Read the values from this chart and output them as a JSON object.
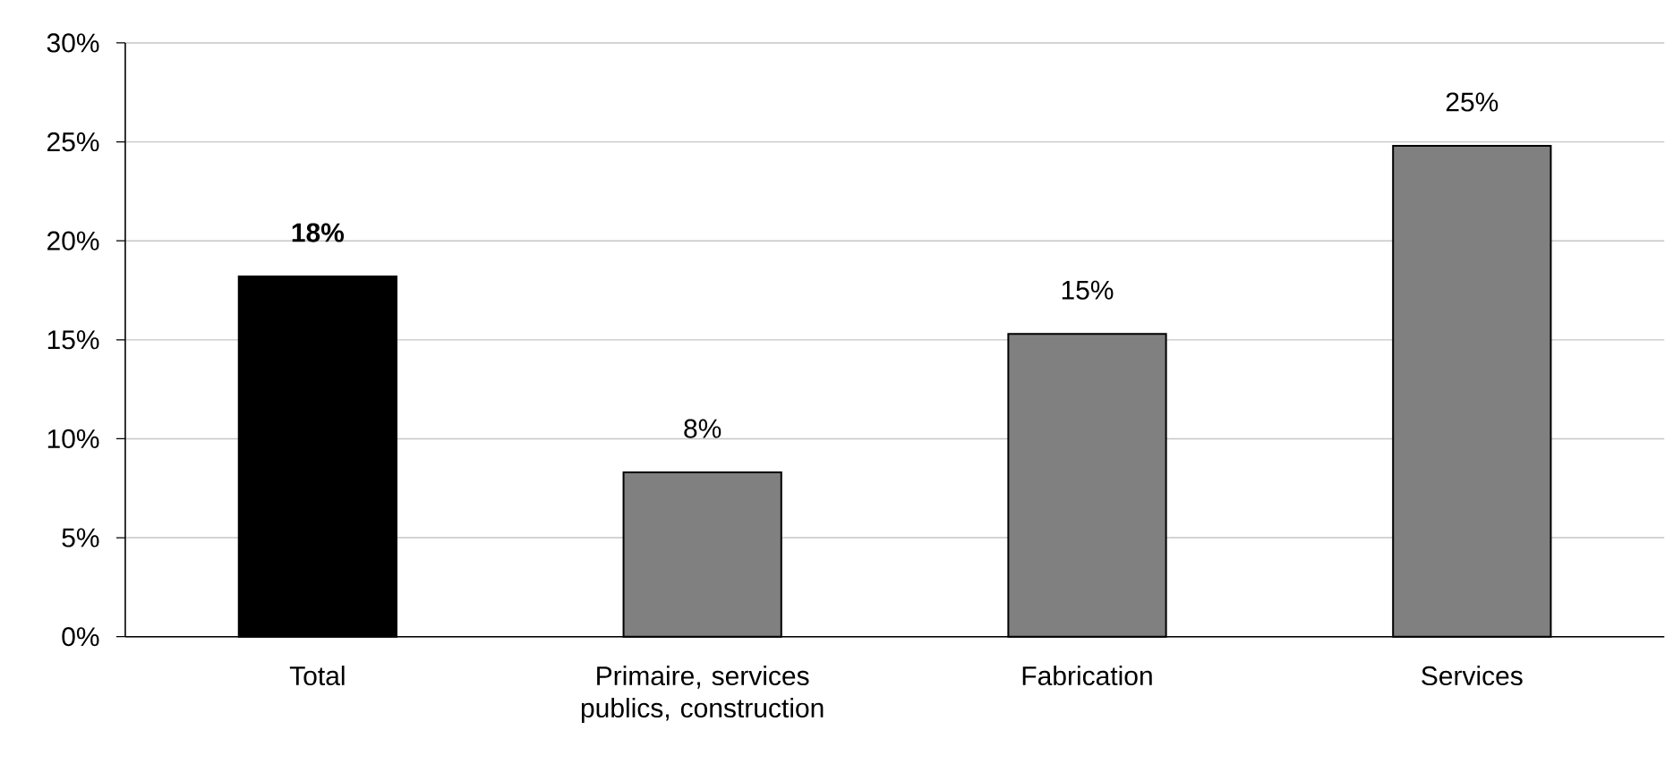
{
  "chart_data": {
    "type": "bar",
    "categories": [
      "Total",
      "Primaire, services publics, construction",
      "Fabrication",
      "Services"
    ],
    "values": [
      18.2,
      8.3,
      15.3,
      24.8
    ],
    "colors": [
      "#000000",
      "#808080",
      "#808080",
      "#808080"
    ],
    "value_labels": [
      "**18%**",
      "8%",
      "15%",
      "25%"
    ],
    "ylim": [
      0,
      30
    ],
    "yticks": [
      {
        "value": 0,
        "label": "0%"
      },
      {
        "value": 5,
        "label": "5%"
      },
      {
        "value": 10,
        "label": "10%"
      },
      {
        "value": 15,
        "label": "15%"
      },
      {
        "value": 20,
        "label": "20%"
      },
      {
        "value": 25,
        "label": "25%"
      },
      {
        "value": 30,
        "label": "30%"
      }
    ],
    "grid": "y"
  }
}
